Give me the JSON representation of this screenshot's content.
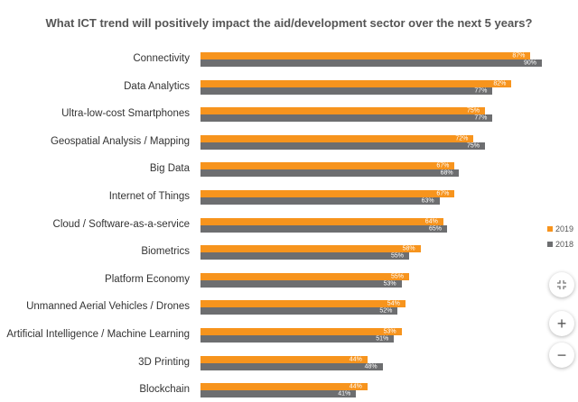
{
  "chart_data": {
    "type": "bar",
    "orientation": "horizontal",
    "title": "What ICT trend will positively impact the aid/development sector over the next 5 years?",
    "categories": [
      "Connectivity",
      "Data Analytics",
      "Ultra-low-cost Smartphones",
      "Geospatial Analysis / Mapping",
      "Big Data",
      "Internet of Things",
      "Cloud / Software-as-a-service",
      "Biometrics",
      "Platform Economy",
      "Unmanned Aerial Vehicles / Drones",
      "Artificial Intelligence / Machine Learning",
      "3D Printing",
      "Blockchain"
    ],
    "series": [
      {
        "name": "2019",
        "color": "#F7941D",
        "values": [
          87,
          82,
          75,
          72,
          67,
          67,
          64,
          58,
          55,
          54,
          53,
          44,
          44
        ]
      },
      {
        "name": "2018",
        "color": "#6D6E70",
        "values": [
          90,
          77,
          77,
          75,
          68,
          63,
          65,
          55,
          53,
          52,
          51,
          48,
          41
        ]
      }
    ],
    "value_format": "percent",
    "xlim": [
      0,
      100
    ],
    "legend": "right",
    "grid": false
  },
  "controls": {
    "fullscreen": "collapse-icon",
    "zoom_in": "+",
    "zoom_out": "−"
  }
}
